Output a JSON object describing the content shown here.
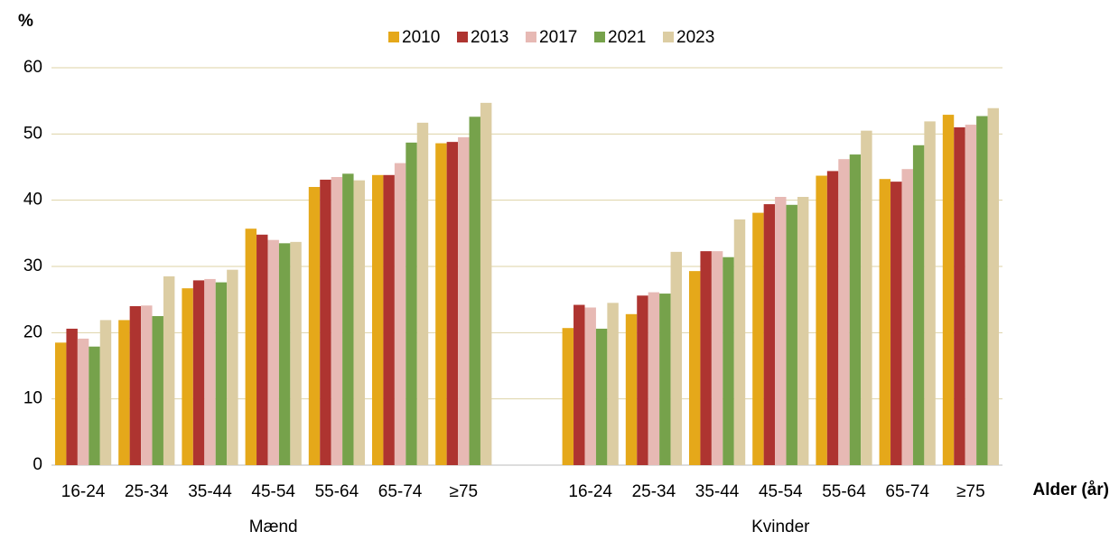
{
  "chart_data": {
    "type": "bar",
    "y_label": "%",
    "x_label": "Alder (år)",
    "group_labels": [
      "Mænd",
      "Kvinder"
    ],
    "categories": [
      "16-24",
      "25-34",
      "35-44",
      "45-54",
      "55-64",
      "65-74",
      "≥75",
      null,
      "16-24",
      "25-34",
      "35-44",
      "45-54",
      "55-64",
      "65-74",
      "≥75"
    ],
    "series": [
      {
        "name": "2010",
        "color": "#e5a81a",
        "values": [
          18.5,
          21.9,
          26.7,
          35.7,
          42.0,
          43.8,
          48.6,
          null,
          20.7,
          22.8,
          29.3,
          38.1,
          43.7,
          43.2,
          52.9
        ]
      },
      {
        "name": "2013",
        "color": "#ae3430",
        "values": [
          20.6,
          24.0,
          27.9,
          34.8,
          43.1,
          43.8,
          48.8,
          null,
          24.2,
          25.6,
          32.3,
          39.4,
          44.4,
          42.8,
          51.0
        ]
      },
      {
        "name": "2017",
        "color": "#e7b9b4",
        "values": [
          19.1,
          24.1,
          28.1,
          34.0,
          43.5,
          45.6,
          49.5,
          null,
          23.8,
          26.1,
          32.3,
          40.5,
          46.2,
          44.7,
          51.4
        ]
      },
      {
        "name": "2021",
        "color": "#76a24b",
        "values": [
          17.9,
          22.5,
          27.6,
          33.5,
          44.0,
          48.7,
          52.6,
          null,
          20.6,
          25.9,
          31.4,
          39.3,
          46.9,
          48.3,
          52.7
        ]
      },
      {
        "name": "2023",
        "color": "#dccda3",
        "values": [
          21.9,
          28.5,
          29.5,
          33.7,
          43.0,
          51.7,
          54.7,
          null,
          24.5,
          32.2,
          37.1,
          40.5,
          50.5,
          51.9,
          53.9
        ]
      }
    ],
    "ylim": [
      0,
      60
    ],
    "yticks": [
      0,
      10,
      20,
      30,
      40,
      50,
      60
    ],
    "grid": true,
    "legend": "top"
  }
}
